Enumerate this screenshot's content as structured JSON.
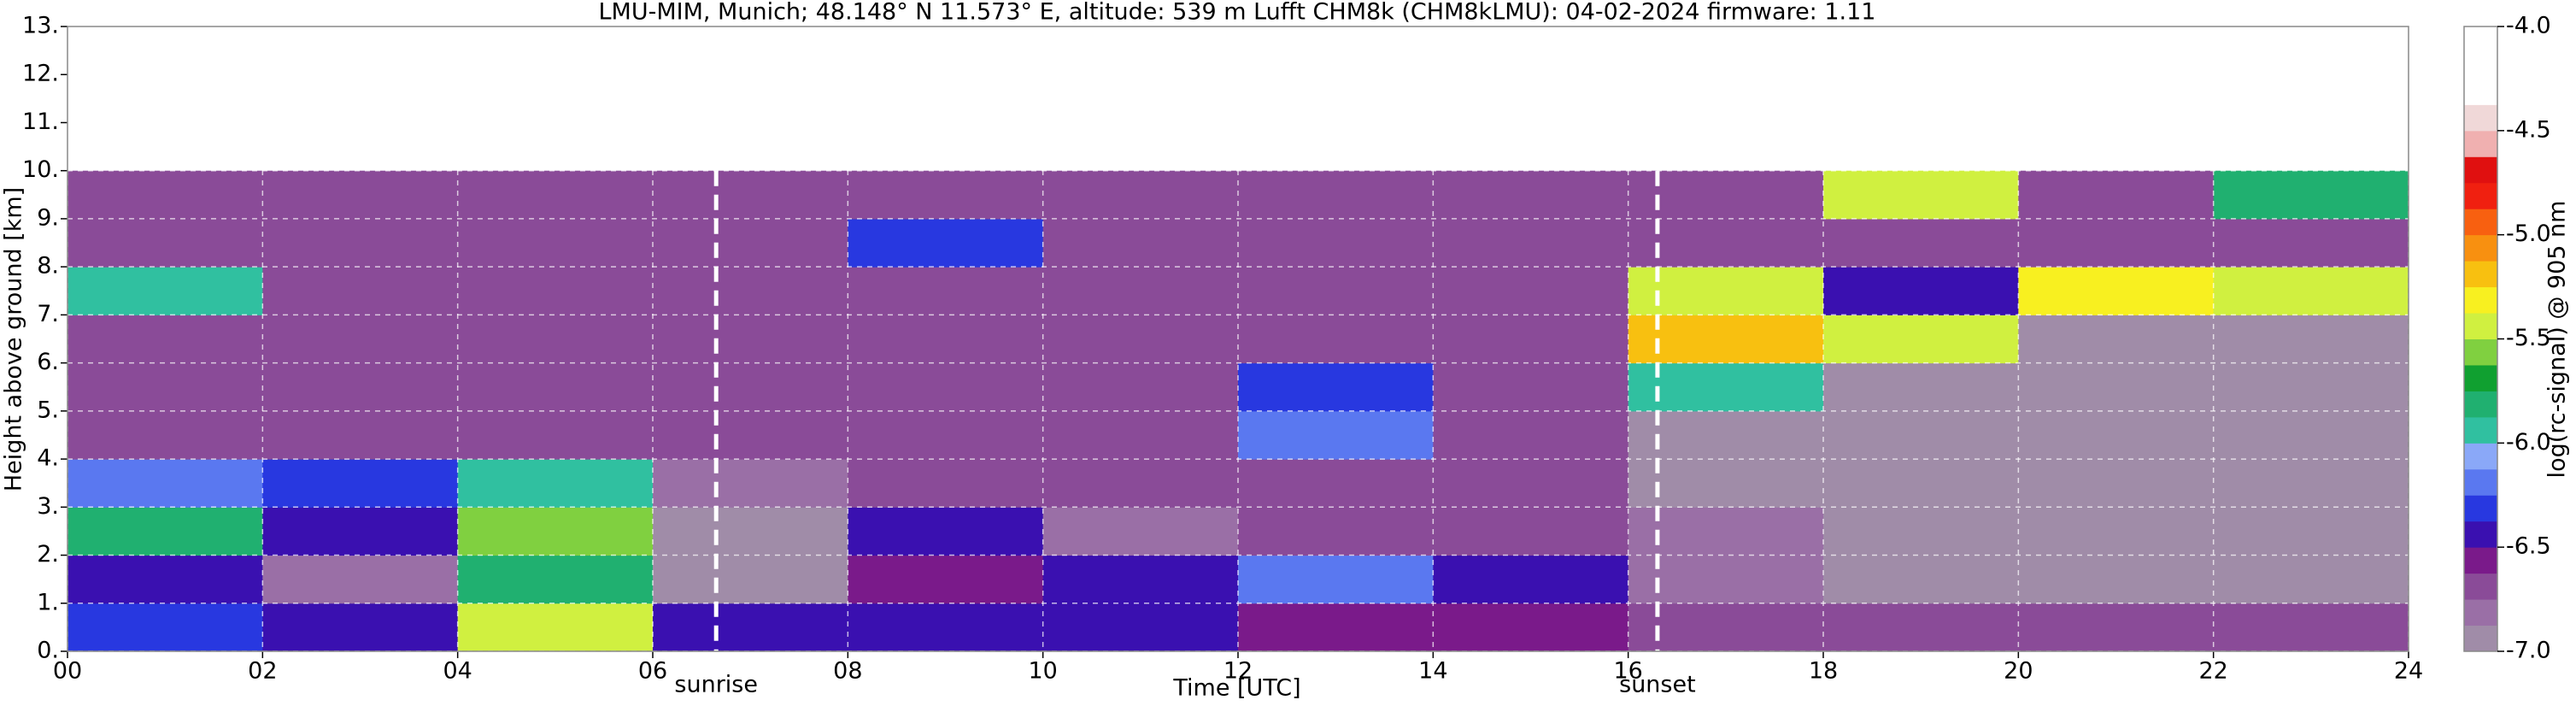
{
  "chart_data": {
    "type": "heatmap",
    "title": "LMU-MIM, Munich; 48.148° N 11.573° E, altitude: 539 m    Lufft CHM8k (CHM8kLMU): 04-02-2024    firmware: 1.11",
    "x_label": "Time [UTC]",
    "y_label": "Height above ground [km]",
    "colorbar_label": "log(rc-signal) @ 905 nm",
    "xlim": [
      0,
      24
    ],
    "ylim": [
      0,
      13
    ],
    "zlim": [
      -7,
      -4
    ],
    "grid": true,
    "xticks": [
      {
        "value": 0,
        "label": "00"
      },
      {
        "value": 2,
        "label": "02"
      },
      {
        "value": 4,
        "label": "04"
      },
      {
        "value": 6,
        "label": "06"
      },
      {
        "value": 8,
        "label": "08"
      },
      {
        "value": 10,
        "label": "10"
      },
      {
        "value": 12,
        "label": "12"
      },
      {
        "value": 14,
        "label": "14"
      },
      {
        "value": 16,
        "label": "16"
      },
      {
        "value": 18,
        "label": "18"
      },
      {
        "value": 20,
        "label": "20"
      },
      {
        "value": 22,
        "label": "22"
      },
      {
        "value": 24,
        "label": "24"
      }
    ],
    "yticks": [
      {
        "value": 0,
        "label": "0."
      },
      {
        "value": 1,
        "label": "1."
      },
      {
        "value": 2,
        "label": "2."
      },
      {
        "value": 3,
        "label": "3."
      },
      {
        "value": 4,
        "label": "4."
      },
      {
        "value": 5,
        "label": "5."
      },
      {
        "value": 6,
        "label": "6."
      },
      {
        "value": 7,
        "label": "7."
      },
      {
        "value": 8,
        "label": "8."
      },
      {
        "value": 9,
        "label": "9."
      },
      {
        "value": 10,
        "label": "10."
      },
      {
        "value": 11,
        "label": "11."
      },
      {
        "value": 12,
        "label": "12."
      },
      {
        "value": 13,
        "label": "13."
      }
    ],
    "zticks": [
      {
        "value": -7,
        "label": "-7.0"
      },
      {
        "value": -6.5,
        "label": "-6.5"
      },
      {
        "value": -6,
        "label": "-6.0"
      },
      {
        "value": -5.5,
        "label": "-5.5"
      },
      {
        "value": -5,
        "label": "-5.0"
      },
      {
        "value": -4.5,
        "label": "-4.5"
      },
      {
        "value": -4,
        "label": "-4.0"
      }
    ],
    "colorscale": [
      "#a08ca8",
      "#9a6fa6",
      "#8a4b98",
      "#7a1a8a",
      "#3a10b0",
      "#2838e0",
      "#5a78f0",
      "#8aa8f8",
      "#30c0a0",
      "#20b070",
      "#10a030",
      "#80d040",
      "#d0f040",
      "#f8f020",
      "#f8c010",
      "#f89010",
      "#f86010",
      "#f02010",
      "#e01010",
      "#f0b0b0",
      "#f0d8d8",
      "#ffffff",
      "#ffffff",
      "#ffffff"
    ],
    "x_edges": [
      0,
      2,
      4,
      6,
      8,
      10,
      12,
      14,
      16,
      18,
      20,
      22,
      24
    ],
    "y_edges": [
      0,
      1,
      2,
      3,
      4,
      5,
      6,
      7,
      8,
      9,
      10
    ],
    "z": [
      [
        -6.3,
        -6.5,
        -5.5,
        -6.4,
        -6.5,
        -6.5,
        -6.6,
        -6.6,
        -6.7,
        -6.7,
        -6.7,
        -6.7
      ],
      [
        -6.5,
        -6.8,
        -5.8,
        -6.9,
        -6.6,
        -6.5,
        -6.2,
        -6.5,
        -6.8,
        -6.9,
        -6.9,
        -6.9
      ],
      [
        -5.8,
        -6.4,
        -5.6,
        -6.9,
        -6.5,
        -6.8,
        -6.7,
        -6.7,
        -6.8,
        -6.9,
        -6.9,
        -6.9
      ],
      [
        -6.2,
        -6.3,
        -6.0,
        -6.8,
        -6.7,
        -6.7,
        -6.7,
        -6.7,
        -6.9,
        -6.9,
        -6.9,
        -6.9
      ],
      [
        -6.7,
        -6.7,
        -6.7,
        -6.7,
        -6.7,
        -6.7,
        -6.2,
        -6.7,
        -6.9,
        -6.9,
        -6.9,
        -6.9
      ],
      [
        -6.7,
        -6.7,
        -6.7,
        -6.7,
        -6.7,
        -6.7,
        -6.3,
        -6.7,
        -6.0,
        -6.9,
        -6.9,
        -6.9
      ],
      [
        -6.7,
        -6.7,
        -6.7,
        -6.7,
        -6.7,
        -6.7,
        -6.7,
        -6.7,
        -5.2,
        -5.5,
        -6.9,
        -6.9
      ],
      [
        -6.0,
        -6.7,
        -6.7,
        -6.7,
        -6.7,
        -6.7,
        -6.7,
        -6.7,
        -5.5,
        -6.5,
        -5.3,
        -5.5
      ],
      [
        -6.7,
        -6.7,
        -6.7,
        -6.7,
        -6.3,
        -6.7,
        -6.7,
        -6.7,
        -6.7,
        -6.7,
        -6.7,
        -6.7
      ],
      [
        -6.7,
        -6.7,
        -6.7,
        -6.7,
        -6.7,
        -6.7,
        -6.7,
        -6.7,
        -6.7,
        -5.5,
        -6.7,
        -5.8
      ]
    ],
    "annotations": [
      {
        "text": "sunrise",
        "x": 6.65
      },
      {
        "text": "sunset",
        "x": 16.3
      }
    ]
  }
}
